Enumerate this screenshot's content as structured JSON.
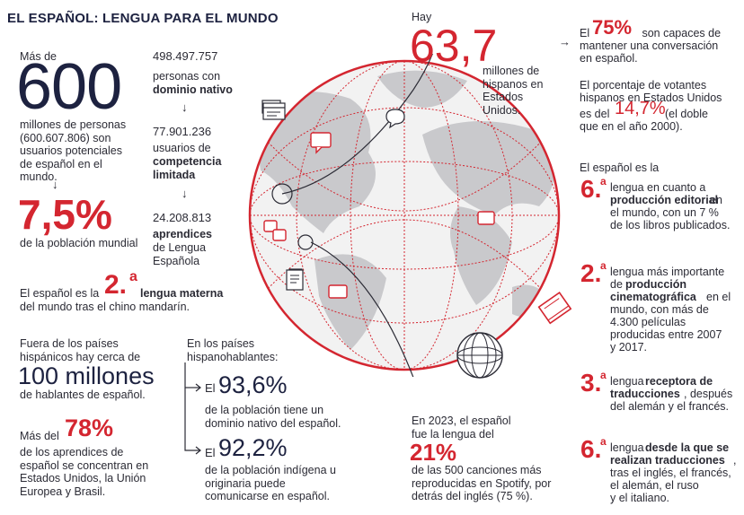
{
  "title": "EL ESPAÑOL: LENGUA PARA EL MUNDO",
  "left": {
    "mas_de": "Más de",
    "big600": "600",
    "millones_text": "millones de personas (600.607.806) son usuarios potenciales de español en el mundo.",
    "pct": "7,5%",
    "pct_text": "de la población mundial",
    "native_num": "498.497.757",
    "native_l1": "personas con",
    "native_bold": "dominio nativo",
    "limited_num": "77.901.236",
    "limited_l1": "usuarios de",
    "limited_bold1": "competencia",
    "limited_bold2": "limitada",
    "learn_num": "24.208.813",
    "learn_bold1": "aprendices",
    "learn_l1": "de Lengua",
    "learn_l2": "Española",
    "materna_pre": "El español es la",
    "materna_num": "2.",
    "materna_sup": "a",
    "materna_bold": "lengua materna",
    "materna_post": "del mundo tras el chino mandarín."
  },
  "bottom_left": {
    "fuera": "Fuera de los países hispánicos hay cerca de",
    "cien": "100 millones",
    "hablantes": "de hablantes de español.",
    "mas_del": "Más del",
    "p78": "78%",
    "p78_text": "de los aprendices de español se concentran en Estados Unidos, la Unión Europea y Brasil.",
    "en_paises": "En los países hispanohablantes:",
    "el1": "El",
    "p936": "93,6%",
    "p936_text": "de la población tiene un dominio nativo del español.",
    "el2": "El",
    "p922": "92,2%",
    "p922_text": "de la población indígena u originaria puede comunicarse en español."
  },
  "center": {
    "hay": "Hay",
    "hisp": "63,7",
    "hisp_text": "millones de hispanos en Estados Unidos.",
    "spotify_pre": "En 2023, el español fue la lengua del",
    "p21": "21%",
    "spotify_text": "de las 500 canciones más reproducidas en Spotify, por detrás del inglés (75 %)."
  },
  "right": {
    "el": "El",
    "p75": "75%",
    "p75_text1": " son capaces de",
    "p75_text2": "mantener una conversación",
    "p75_text3": "en español.",
    "votantes1": "El porcentaje de votantes",
    "votantes2": "hispanos en Estados Unidos",
    "votantes3": "es del",
    "p147": "14,7%",
    "votantes4": "(el doble",
    "votantes5": "que en el año 2000).",
    "es_la": "El español es la",
    "rank1_num": "6.",
    "rank1_sup": "a",
    "rank1_l1": "lengua en cuanto a",
    "rank1_bold": "producción editorial",
    "rank1_l2": "en",
    "rank1_l3": "el mundo, con un 7 %",
    "rank1_l4": "de los libros publicados.",
    "rank2_num": "2.",
    "rank2_sup": "a",
    "rank2_l1": "lengua más importante",
    "rank2_l2": "de",
    "rank2_bold1": "producción",
    "rank2_bold2": "cinematográfica",
    "rank2_l3": "en el",
    "rank2_l4": "mundo, con más de",
    "rank2_l5": "4.300 películas",
    "rank2_l6": "producidas entre 2007",
    "rank2_l7": "y 2017.",
    "rank3_num": "3.",
    "rank3_sup": "a",
    "rank3_l1": "lengua",
    "rank3_bold1": "receptora de",
    "rank3_bold2": "traducciones",
    "rank3_l2": ", después",
    "rank3_l3": "del alemán y el francés.",
    "rank4_num": "6.",
    "rank4_sup": "a",
    "rank4_l1": "lengua",
    "rank4_bold1": "desde la que se",
    "rank4_bold2": "realizan traducciones",
    "rank4_l2": ",",
    "rank4_l3": "tras el inglés, el francés,",
    "rank4_l4": "el alemán, el ruso",
    "rank4_l5": "y el italiano."
  },
  "colors": {
    "accent": "#d42630",
    "navy": "#1d2240",
    "globe_land": "#c9c9cc",
    "globe_sea": "#f0f0f0"
  },
  "icons": [
    "chat-bubble-icon",
    "book-icon",
    "document-icon",
    "browser-window-icon",
    "wire-globe-icon",
    "arrow-right-icon"
  ]
}
